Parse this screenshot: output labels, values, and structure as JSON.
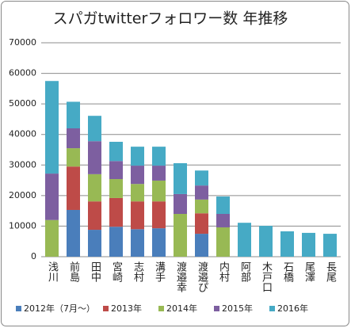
{
  "chart_data": {
    "type": "stacked_bar",
    "title": "スパガtwitterフォロワー数 年推移",
    "categories": [
      "浅川",
      "前島",
      "田中",
      "宮崎",
      "志村",
      "溝手",
      "渡邉幸",
      "渡邉ぴ",
      "内村",
      "阿部",
      "木戸口",
      "石橋",
      "尾澤",
      "長尾"
    ],
    "series": [
      {
        "name": "2012年（7月～）",
        "color": "#4a7ebb",
        "values": [
          0,
          15300,
          8800,
          9800,
          9000,
          9300,
          0,
          7500,
          0,
          0,
          0,
          0,
          0,
          0
        ]
      },
      {
        "name": "2013年",
        "color": "#be4b48",
        "values": [
          0,
          14200,
          9300,
          9400,
          9100,
          8800,
          0,
          6700,
          0,
          0,
          0,
          0,
          0,
          0
        ]
      },
      {
        "name": "2014年",
        "color": "#98b954",
        "values": [
          12000,
          6000,
          8900,
          6200,
          5700,
          6800,
          14000,
          4500,
          9600,
          0,
          0,
          0,
          0,
          0
        ]
      },
      {
        "name": "2015年",
        "color": "#7d5fa0",
        "values": [
          15200,
          6500,
          10800,
          5900,
          6000,
          4900,
          6500,
          4600,
          4400,
          0,
          0,
          0,
          0,
          0
        ]
      },
      {
        "name": "2016年",
        "color": "#46aac5",
        "values": [
          30300,
          8700,
          8300,
          6300,
          6200,
          6200,
          10100,
          4900,
          5700,
          11100,
          10100,
          8300,
          7800,
          7500
        ]
      }
    ],
    "ylim": [
      0,
      70000
    ],
    "yticks": [
      0,
      10000,
      20000,
      30000,
      40000,
      50000,
      60000,
      70000
    ],
    "grid": true
  }
}
